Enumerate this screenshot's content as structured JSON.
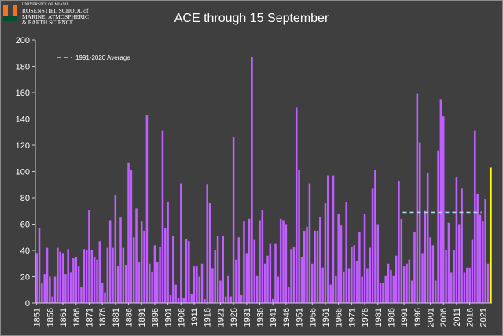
{
  "logo": {
    "line1": "UNIVERSITY OF MIAMI",
    "line2": "ROSENSTIEL SCHOOL of",
    "line3": "MARINE, ATMOSPHERIC",
    "line4": "& EARTH SCIENCE"
  },
  "colors": {
    "bar": "#bf5fff",
    "highlight": "#ffff00",
    "average_line": "#add8e6",
    "background": "#3f3f3f",
    "text": "#ffffff"
  },
  "chart_data": {
    "type": "bar",
    "title": "ACE through 15 September",
    "xlabel": "",
    "ylabel": "",
    "ylim": [
      0,
      200
    ],
    "yticks": [
      0,
      20,
      40,
      60,
      80,
      100,
      120,
      140,
      160,
      180,
      200
    ],
    "xticks": [
      1851,
      1856,
      1861,
      1866,
      1871,
      1876,
      1881,
      1886,
      1891,
      1896,
      1901,
      1906,
      1911,
      1916,
      1921,
      1926,
      1931,
      1936,
      1941,
      1946,
      1951,
      1956,
      1961,
      1966,
      1971,
      1976,
      1981,
      1986,
      1991,
      1996,
      2001,
      2006,
      2011,
      2016,
      2021
    ],
    "grid": false,
    "legend": {
      "position": "top-left",
      "entries": [
        "1991-2020 Average"
      ]
    },
    "x_start": 1851,
    "x_end": 2024,
    "values": [
      38,
      57,
      15,
      22,
      42,
      20,
      5,
      20,
      42,
      39,
      38,
      22,
      41,
      23,
      34,
      35,
      28,
      12,
      41,
      40,
      71,
      40,
      35,
      33,
      47,
      15,
      8,
      42,
      63,
      42,
      82,
      28,
      65,
      42,
      29,
      107,
      101,
      50,
      72,
      31,
      62,
      55,
      143,
      30,
      24,
      44,
      31,
      43,
      131,
      57,
      77,
      6,
      51,
      14,
      4,
      91,
      4,
      49,
      47,
      7,
      28,
      28,
      20,
      30,
      3,
      90,
      76,
      26,
      40,
      51,
      17,
      51,
      5,
      21,
      5,
      126,
      33,
      50,
      6,
      62,
      38,
      64,
      187,
      48,
      21,
      63,
      71,
      30,
      36,
      45,
      3,
      45,
      20,
      64,
      63,
      60,
      12,
      41,
      43,
      149,
      101,
      35,
      55,
      58,
      91,
      30,
      55,
      55,
      65,
      27,
      76,
      97,
      14,
      97,
      21,
      68,
      59,
      24,
      77,
      26,
      43,
      44,
      32,
      54,
      20,
      68,
      26,
      42,
      87,
      101,
      60,
      15,
      15,
      21,
      30,
      25,
      21,
      36,
      93,
      64,
      28,
      30,
      33,
      17,
      54,
      159,
      122,
      38,
      70,
      99,
      50,
      44,
      17,
      116,
      155,
      142,
      40,
      61,
      23,
      40,
      96,
      60,
      87,
      23,
      27,
      27,
      48,
      131,
      83,
      67,
      62,
      79,
      30,
      103
    ],
    "average": {
      "label": "1991-2020 Average",
      "value": 69,
      "x_from": 1991,
      "x_to": 2020
    },
    "highlight_year": 2024
  }
}
